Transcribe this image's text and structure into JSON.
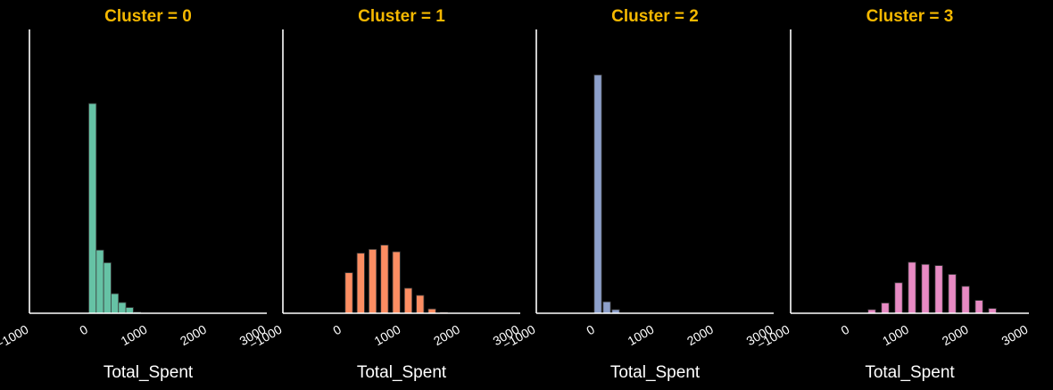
{
  "chart_data": {
    "type": "bar",
    "subtype": "histogram-facet-grid",
    "title_color": "#f5b800",
    "axis_color": "#ffffff",
    "xlim": [
      -1000,
      3000
    ],
    "xticks": [
      -1000,
      0,
      1000,
      2000,
      3000
    ],
    "xtick_labels": [
      "−1000",
      "0",
      "1000",
      "2000",
      "3000"
    ],
    "ylim": [
      0,
      1
    ],
    "bin_width": 125,
    "grid": false,
    "panels": [
      {
        "title": "Cluster = 0",
        "xlabel": "Total_Spent",
        "color": "#66c2a5",
        "bins": [
          {
            "start": 0,
            "value": 0.88
          },
          {
            "start": 125,
            "value": 0.265
          },
          {
            "start": 250,
            "value": 0.212
          },
          {
            "start": 375,
            "value": 0.082
          },
          {
            "start": 500,
            "value": 0.045
          },
          {
            "start": 625,
            "value": 0.024
          },
          {
            "start": 750,
            "value": 0.005
          }
        ]
      },
      {
        "title": "Cluster = 1",
        "xlabel": "Total_Spent",
        "color": "#fc8d62",
        "bins": [
          {
            "start": 50,
            "value": 0.17
          },
          {
            "start": 250,
            "value": 0.252
          },
          {
            "start": 450,
            "value": 0.268
          },
          {
            "start": 650,
            "value": 0.286
          },
          {
            "start": 850,
            "value": 0.258
          },
          {
            "start": 1050,
            "value": 0.105
          },
          {
            "start": 1250,
            "value": 0.075
          },
          {
            "start": 1450,
            "value": 0.018
          },
          {
            "start": 1650,
            "value": 0.004
          }
        ]
      },
      {
        "title": "Cluster = 2",
        "xlabel": "Total_Spent",
        "color": "#8da0cb",
        "bins": [
          {
            "start": -25,
            "value": 1.0
          },
          {
            "start": 125,
            "value": 0.048
          },
          {
            "start": 275,
            "value": 0.015
          }
        ]
      },
      {
        "title": "Cluster = 3",
        "xlabel": "Total_Spent",
        "color": "#e78ac3",
        "bins": [
          {
            "start": 300,
            "value": 0.015
          },
          {
            "start": 525,
            "value": 0.043
          },
          {
            "start": 750,
            "value": 0.128
          },
          {
            "start": 975,
            "value": 0.214
          },
          {
            "start": 1200,
            "value": 0.205
          },
          {
            "start": 1425,
            "value": 0.2
          },
          {
            "start": 1650,
            "value": 0.163
          },
          {
            "start": 1875,
            "value": 0.113
          },
          {
            "start": 2100,
            "value": 0.054
          },
          {
            "start": 2325,
            "value": 0.02
          }
        ]
      }
    ]
  }
}
